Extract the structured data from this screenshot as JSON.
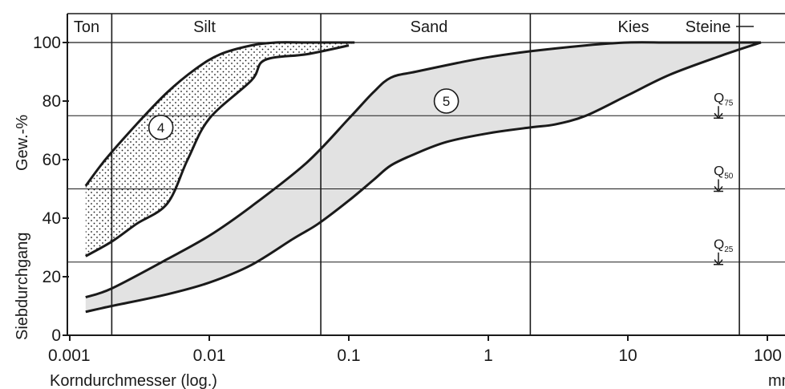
{
  "chart_data": {
    "type": "area",
    "title": "",
    "xlabel": "Korndurchmesser (log.)",
    "xunit": "mm",
    "ylabel": "Siebdurchgang",
    "yunit": "Gew.-%",
    "xscale": "log",
    "xlim": [
      0.0013,
      100
    ],
    "ylim": [
      0,
      100
    ],
    "xticks": [
      0.001,
      0.01,
      0.1,
      1,
      10,
      100
    ],
    "xtick_labels": [
      "0.001",
      "0.01",
      "0.1",
      "1",
      "10",
      "100"
    ],
    "yticks": [
      0,
      20,
      40,
      60,
      80,
      100
    ],
    "ytick_labels": [
      "0",
      "20",
      "40",
      "60",
      "80",
      "100"
    ],
    "zones": [
      {
        "label": "Ton",
        "from": 0.0013,
        "to": 0.002
      },
      {
        "label": "Silt",
        "from": 0.002,
        "to": 0.063
      },
      {
        "label": "Sand",
        "from": 0.063,
        "to": 2
      },
      {
        "label": "Kies",
        "from": 2,
        "to": 63
      },
      {
        "label": "Steine",
        "from": 63,
        "to": 100
      }
    ],
    "quantile_lines": [
      {
        "label": "Q",
        "sub": "75",
        "y": 75
      },
      {
        "label": "Q",
        "sub": "50",
        "y": 50
      },
      {
        "label": "Q",
        "sub": "25",
        "y": 25
      }
    ],
    "bands": [
      {
        "name": "4",
        "fill": "dotted",
        "label_at": {
          "x": 0.0045,
          "y": 71
        },
        "upper": {
          "x": [
            0.0013,
            0.0018,
            0.003,
            0.005,
            0.008,
            0.012,
            0.02,
            0.03,
            0.05,
            0.09,
            0.11
          ],
          "y": [
            51,
            60,
            72,
            83,
            91,
            96,
            99,
            100,
            100,
            100,
            100
          ]
        },
        "lower": {
          "x": [
            0.0013,
            0.002,
            0.003,
            0.005,
            0.007,
            0.01,
            0.02,
            0.025,
            0.05,
            0.1
          ],
          "y": [
            27,
            32,
            38,
            45,
            60,
            74,
            87,
            94,
            96,
            99
          ]
        }
      },
      {
        "name": "5",
        "fill": "shaded",
        "label_at": {
          "x": 0.5,
          "y": 80
        },
        "upper": {
          "x": [
            0.0013,
            0.002,
            0.005,
            0.01,
            0.02,
            0.05,
            0.1,
            0.15,
            0.2,
            0.3,
            0.6,
            1,
            2,
            5,
            10,
            20,
            50,
            90
          ],
          "y": [
            13,
            16,
            26,
            34,
            44,
            59,
            74,
            83,
            88,
            90,
            93,
            95,
            97,
            99,
            100,
            100,
            100,
            100
          ]
        },
        "lower": {
          "x": [
            0.0013,
            0.002,
            0.005,
            0.01,
            0.02,
            0.04,
            0.06,
            0.1,
            0.15,
            0.2,
            0.3,
            0.5,
            1,
            2,
            3,
            5,
            10,
            20,
            50,
            90
          ],
          "y": [
            8,
            10,
            14,
            18,
            24,
            33,
            38,
            46,
            53,
            58,
            62,
            66,
            69,
            71,
            72,
            75,
            82,
            89,
            96,
            100
          ]
        }
      }
    ]
  }
}
